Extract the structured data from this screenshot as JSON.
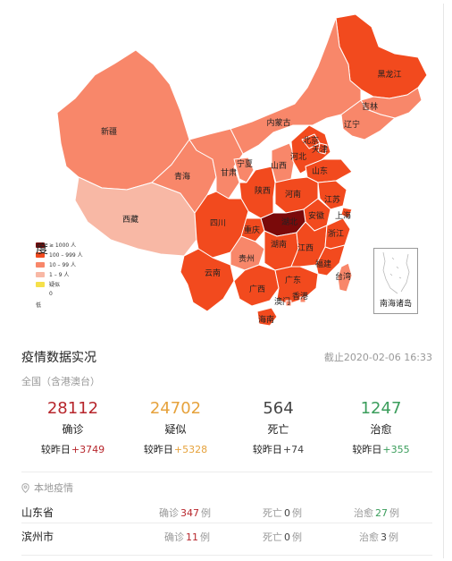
{
  "map": {
    "provinces": [
      {
        "name": "黑龙江",
        "level": "l3"
      },
      {
        "name": "吉林",
        "level": "l2"
      },
      {
        "name": "辽宁",
        "level": "l2"
      },
      {
        "name": "内蒙古",
        "level": "l2"
      },
      {
        "name": "新疆",
        "level": "l2"
      },
      {
        "name": "西藏",
        "level": "l1"
      },
      {
        "name": "青海",
        "level": "l2"
      },
      {
        "name": "甘肃",
        "level": "l2"
      },
      {
        "name": "宁夏",
        "level": "l2"
      },
      {
        "name": "陕西",
        "level": "l3"
      },
      {
        "name": "山西",
        "level": "l2"
      },
      {
        "name": "河北",
        "level": "l3"
      },
      {
        "name": "北京",
        "level": "l3"
      },
      {
        "name": "天津",
        "level": "l3"
      },
      {
        "name": "山东",
        "level": "l3"
      },
      {
        "name": "河南",
        "level": "l3"
      },
      {
        "name": "江苏",
        "level": "l3"
      },
      {
        "name": "上海",
        "level": "l3"
      },
      {
        "name": "安徽",
        "level": "l3"
      },
      {
        "name": "湖北",
        "level": "l4"
      },
      {
        "name": "重庆",
        "level": "l3"
      },
      {
        "name": "四川",
        "level": "l3"
      },
      {
        "name": "贵州",
        "level": "l2"
      },
      {
        "name": "湖南",
        "level": "l3"
      },
      {
        "name": "江西",
        "level": "l3"
      },
      {
        "name": "浙江",
        "level": "l3"
      },
      {
        "name": "福建",
        "level": "l3"
      },
      {
        "name": "云南",
        "level": "l3"
      },
      {
        "name": "广西",
        "level": "l3"
      },
      {
        "name": "广东",
        "level": "l3"
      },
      {
        "name": "澳门",
        "level": "l2"
      },
      {
        "name": "香港",
        "level": "l2"
      },
      {
        "name": "台湾",
        "level": "l2"
      },
      {
        "name": "海南",
        "level": "l3"
      }
    ],
    "colors": {
      "l4": "#7a0a0a",
      "l3": "#f24a1e",
      "l2": "#f8876a",
      "l1": "#f8b8a5",
      "l0": "#f5e04a",
      "border": "#ffffff"
    },
    "legend": {
      "title": "度",
      "items": [
        {
          "label": "≥ 1000 人",
          "color": "#7a0a0a"
        },
        {
          "label": "100 – 999 人",
          "color": "#f24a1e"
        },
        {
          "label": "10 – 99 人",
          "color": "#f8876a"
        },
        {
          "label": "1 – 9 人",
          "color": "#f8b8a5"
        },
        {
          "label": "疑似",
          "color": "#f5e04a"
        }
      ],
      "zero": "0",
      "footer": "低"
    },
    "nanhai_label": "南海诸岛"
  },
  "header": {
    "title": "疫情数据实况",
    "as_of": "截止2020-02-06 16:33"
  },
  "scope": "全国（含港澳台）",
  "stats": [
    {
      "value": "28112",
      "label": "确诊",
      "delta_prefix": "较昨日",
      "delta": "+3749",
      "color": "#b7262c"
    },
    {
      "value": "24702",
      "label": "疑似",
      "delta_prefix": "较昨日",
      "delta": "+5328",
      "color": "#e6a23c"
    },
    {
      "value": "564",
      "label": "死亡",
      "delta_prefix": "较昨日",
      "delta": "+74",
      "color": "#444444"
    },
    {
      "value": "1247",
      "label": "治愈",
      "delta_prefix": "较昨日",
      "delta": "+355",
      "color": "#3a9d5b"
    }
  ],
  "local": {
    "heading": "本地疫情",
    "rows": [
      {
        "name": "山东省",
        "confirmed_label": "确诊",
        "confirmed": "347",
        "deaths_label": "死亡",
        "deaths": "0",
        "cured_label": "治愈",
        "cured": "27",
        "unit": "例"
      },
      {
        "name": "滨州市",
        "confirmed_label": "确诊",
        "confirmed": "11",
        "deaths_label": "死亡",
        "deaths": "0",
        "cured_label": "治愈",
        "cured": "3",
        "unit": "例"
      }
    ]
  }
}
